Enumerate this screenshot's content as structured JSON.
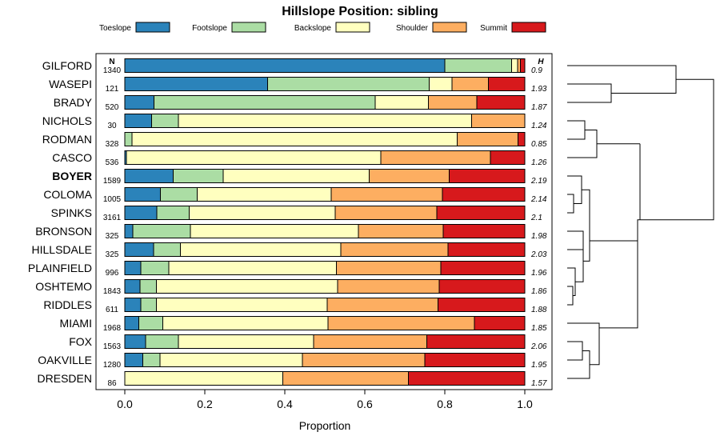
{
  "chart_data": {
    "type": "bar",
    "orientation": "horizontal",
    "stacked": true,
    "title": "Hillslope Position: sibling",
    "xlabel": "Proportion",
    "ylabel": "",
    "xlim": [
      0,
      1
    ],
    "x_ticks": [
      "0.0",
      "0.2",
      "0.4",
      "0.6",
      "0.8",
      "1.0"
    ],
    "n_header": "N",
    "h_header": "H",
    "legend_position": "top",
    "colors": [
      "#2b83ba",
      "#abdda4",
      "#ffffbf",
      "#fdae61",
      "#d7191c"
    ],
    "series_names": [
      "Toeslope",
      "Footslope",
      "Backslope",
      "Shoulder",
      "Summit"
    ],
    "highlight": "BOYER",
    "categories": [
      "GILFORD",
      "WASEPI",
      "BRADY",
      "NICHOLS",
      "RODMAN",
      "CASCO",
      "BOYER",
      "COLOMA",
      "SPINKS",
      "BRONSON",
      "HILLSDALE",
      "PLAINFIELD",
      "OSHTEMO",
      "RIDDLES",
      "MIAMI",
      "FOX",
      "OAKVILLE",
      "DRESDEN"
    ],
    "n": [
      "1340",
      "121",
      "520",
      "30",
      "328",
      "536",
      "1589",
      "1005",
      "3161",
      "325",
      "325",
      "996",
      "1843",
      "611",
      "1968",
      "1563",
      "1280",
      "86"
    ],
    "h": [
      "0.9",
      "1.93",
      "1.87",
      "1.24",
      "0.85",
      "1.26",
      "2.19",
      "2.14",
      "2.1",
      "1.98",
      "2.03",
      "1.96",
      "1.86",
      "1.88",
      "1.85",
      "2.06",
      "1.95",
      "1.57"
    ],
    "series": [
      {
        "name": "Toeslope",
        "values": [
          0.8,
          0.357,
          0.073,
          0.067,
          0.0,
          0.004,
          0.121,
          0.089,
          0.08,
          0.02,
          0.072,
          0.04,
          0.038,
          0.04,
          0.035,
          0.052,
          0.045,
          0.0
        ]
      },
      {
        "name": "Footslope",
        "values": [
          0.167,
          0.404,
          0.553,
          0.067,
          0.018,
          0.0,
          0.125,
          0.092,
          0.081,
          0.144,
          0.067,
          0.07,
          0.041,
          0.039,
          0.06,
          0.082,
          0.043,
          0.0
        ]
      },
      {
        "name": "Backslope",
        "values": [
          0.015,
          0.057,
          0.133,
          0.733,
          0.813,
          0.636,
          0.365,
          0.335,
          0.365,
          0.42,
          0.401,
          0.419,
          0.453,
          0.427,
          0.413,
          0.338,
          0.356,
          0.395
        ]
      },
      {
        "name": "Shoulder",
        "values": [
          0.007,
          0.091,
          0.121,
          0.133,
          0.152,
          0.274,
          0.2,
          0.278,
          0.254,
          0.212,
          0.268,
          0.261,
          0.254,
          0.277,
          0.366,
          0.283,
          0.306,
          0.314
        ]
      },
      {
        "name": "Summit",
        "values": [
          0.011,
          0.091,
          0.12,
          0.0,
          0.017,
          0.086,
          0.189,
          0.206,
          0.22,
          0.204,
          0.192,
          0.21,
          0.214,
          0.217,
          0.126,
          0.245,
          0.25,
          0.291
        ]
      }
    ]
  }
}
